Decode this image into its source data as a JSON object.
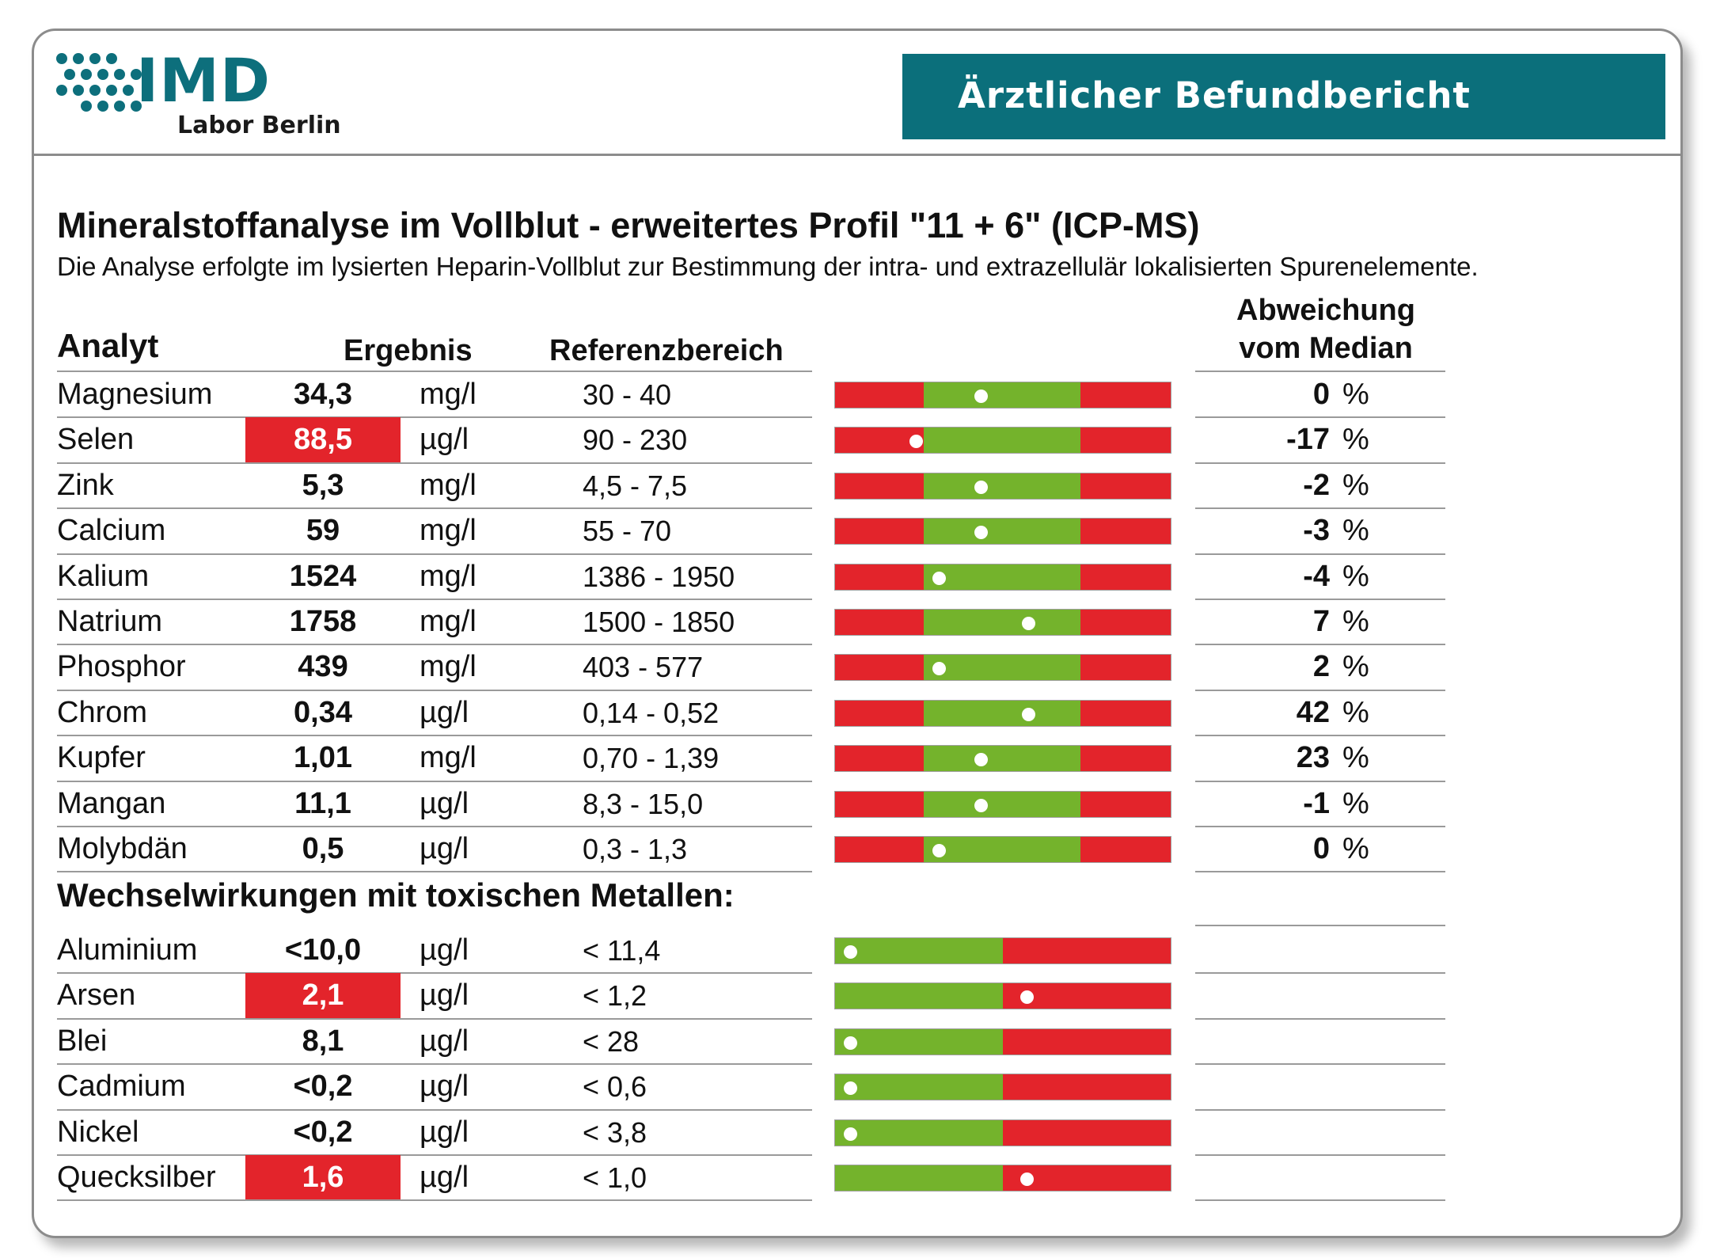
{
  "header": {
    "logo_text": "IMD",
    "logo_sub": "Labor Berlin",
    "banner": "Ärztlicher Befundbericht"
  },
  "report": {
    "title": "Mineralstoffanalyse im Vollblut - erweitertes Profil \"11 + 6\" (ICP-MS)",
    "subtitle": "Die Analyse erfolgte im lysierten Heparin-Vollblut zur Bestimmung der intra- und extrazellulär lokalisierten Spurenelemente."
  },
  "columns": {
    "analyt": "Analyt",
    "ergebnis": "Ergebnis",
    "referenz": "Referenzbereich",
    "abweichung_1": "Abweichung",
    "abweichung_2": "vom Median"
  },
  "colors": {
    "flag": "#e3242b",
    "ok": "#74b32c",
    "accent": "#0b6f7b"
  },
  "minerals": [
    {
      "name": "Magnesium",
      "value": "34,3",
      "unit": "mg/l",
      "ref": "30 - 40",
      "deviation": "0",
      "pct": "%",
      "flag": false,
      "marker": 0.435
    },
    {
      "name": "Selen",
      "value": "88,5",
      "unit": "µg/l",
      "ref": "90 - 230",
      "deviation": "-17",
      "pct": "%",
      "flag": true,
      "marker": 0.24
    },
    {
      "name": "Zink",
      "value": "5,3",
      "unit": "mg/l",
      "ref": "4,5 - 7,5",
      "deviation": "-2",
      "pct": "%",
      "flag": false,
      "marker": 0.435
    },
    {
      "name": "Calcium",
      "value": "59",
      "unit": "mg/l",
      "ref": "55 - 70",
      "deviation": "-3",
      "pct": "%",
      "flag": false,
      "marker": 0.435
    },
    {
      "name": "Kalium",
      "value": "1524",
      "unit": "mg/l",
      "ref": "1386 - 1950",
      "deviation": "-4",
      "pct": "%",
      "flag": false,
      "marker": 0.31
    },
    {
      "name": "Natrium",
      "value": "1758",
      "unit": "mg/l",
      "ref": "1500 - 1850",
      "deviation": "7",
      "pct": "%",
      "flag": false,
      "marker": 0.575
    },
    {
      "name": "Phosphor",
      "value": "439",
      "unit": "mg/l",
      "ref": "403 - 577",
      "deviation": "2",
      "pct": "%",
      "flag": false,
      "marker": 0.31
    },
    {
      "name": "Chrom",
      "value": "0,34",
      "unit": "µg/l",
      "ref": "0,14 - 0,52",
      "deviation": "42",
      "pct": "%",
      "flag": false,
      "marker": 0.575
    },
    {
      "name": "Kupfer",
      "value": "1,01",
      "unit": "mg/l",
      "ref": "0,70 - 1,39",
      "deviation": "23",
      "pct": "%",
      "flag": false,
      "marker": 0.435
    },
    {
      "name": "Mangan",
      "value": "11,1",
      "unit": "µg/l",
      "ref": "8,3 - 15,0",
      "deviation": "-1",
      "pct": "%",
      "flag": false,
      "marker": 0.435
    },
    {
      "name": "Molybdän",
      "value": "0,5",
      "unit": "µg/l",
      "ref": "0,3 - 1,3",
      "deviation": "0",
      "pct": "%",
      "flag": false,
      "marker": 0.31
    }
  ],
  "toxic_section": "Wechselwirkungen mit toxischen Metallen:",
  "toxic": [
    {
      "name": "Aluminium",
      "value": "<10,0",
      "unit": "µg/l",
      "ref": "< 11,4",
      "flag": false,
      "marker": 0.045
    },
    {
      "name": "Arsen",
      "value": "2,1",
      "unit": "µg/l",
      "ref": "< 1,2",
      "flag": true,
      "marker": 0.57
    },
    {
      "name": "Blei",
      "value": "8,1",
      "unit": "µg/l",
      "ref": "< 28",
      "flag": false,
      "marker": 0.045
    },
    {
      "name": "Cadmium",
      "value": "<0,2",
      "unit": "µg/l",
      "ref": "< 0,6",
      "flag": false,
      "marker": 0.045
    },
    {
      "name": "Nickel",
      "value": "<0,2",
      "unit": "µg/l",
      "ref": "< 3,8",
      "flag": false,
      "marker": 0.045
    },
    {
      "name": "Quecksilber",
      "value": "1,6",
      "unit": "µg/l",
      "ref": "< 1,0",
      "flag": true,
      "marker": 0.57
    }
  ]
}
